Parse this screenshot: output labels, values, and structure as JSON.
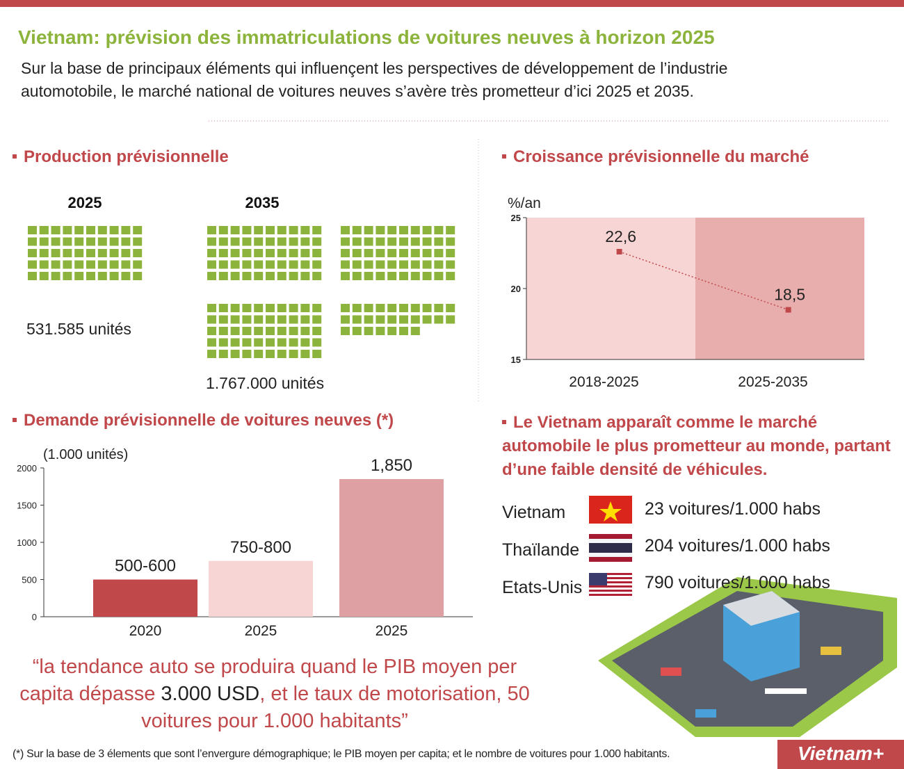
{
  "header": {
    "title": "Vietnam: prévision des immatriculations de voitures neuves à horizon 2025",
    "subtitle": "Sur la base de principaux éléments qui influençent les perspectives de développement de l’industrie automotobile, le marché national de voitures neuves s’avère très prometteur d’ici 2025 et 2035."
  },
  "production": {
    "heading": "Production prévisionnelle",
    "years": [
      "2025",
      "2035"
    ],
    "values": [
      531585,
      1767000
    ],
    "value_labels": [
      "531.585 unités",
      "1.767.000 unités"
    ],
    "color": "#8cb43c"
  },
  "chart_data": [
    {
      "type": "line",
      "title": "Croissance prévisionnelle du marché",
      "y_label": "%/an",
      "categories": [
        "2018-2025",
        "2025-2035"
      ],
      "values": [
        22.6,
        18.5
      ],
      "value_labels": [
        "22,6",
        "18,5"
      ],
      "color": "#c0474a",
      "band_colors": [
        "#f8d5d5",
        "#e8adad"
      ],
      "ylim": [
        15,
        25
      ],
      "yticks": [
        15,
        20,
        25
      ]
    },
    {
      "type": "bar",
      "title": "Demande prévisionnelle de voitures neuves (*)",
      "y_label": "(1.000 unités)",
      "categories": [
        "2020",
        "2025",
        "2025"
      ],
      "values": [
        500,
        750,
        1850
      ],
      "value_labels": [
        "500-600",
        "750-800",
        "1,850"
      ],
      "colors": [
        "#c0474a",
        "#f8d5d5",
        "#dea0a2"
      ],
      "ylim": [
        0,
        2000
      ],
      "yticks": [
        0,
        500,
        1000,
        1500,
        2000
      ]
    }
  ],
  "density": {
    "heading": "Le Vietnam apparaît comme le marché automobile le plus prometteur au monde, partant d’une faible densité de véhicules.",
    "rows": [
      {
        "country": "Vietnam",
        "text": "23 voitures/1.000 habs"
      },
      {
        "country": "Thaïlande",
        "text": "204 voitures/1.000 habs"
      },
      {
        "country": "Etats-Unis",
        "text": "790 voitures/1.000 habs"
      }
    ]
  },
  "quote": [
    "“la tendance auto se produira quand le PIB moyen per capita dépasse ",
    "3.000 USD",
    ", et le taux de motorisation, 50 voitures pour 1.000 habitants”"
  ],
  "footnote": "(*) Sur la base de 3 élements que sont l’envergure démographique; le PIB moyen per capita; et le nombre de voitures pour 1.000 habitants.",
  "logo": "Vietnam+"
}
